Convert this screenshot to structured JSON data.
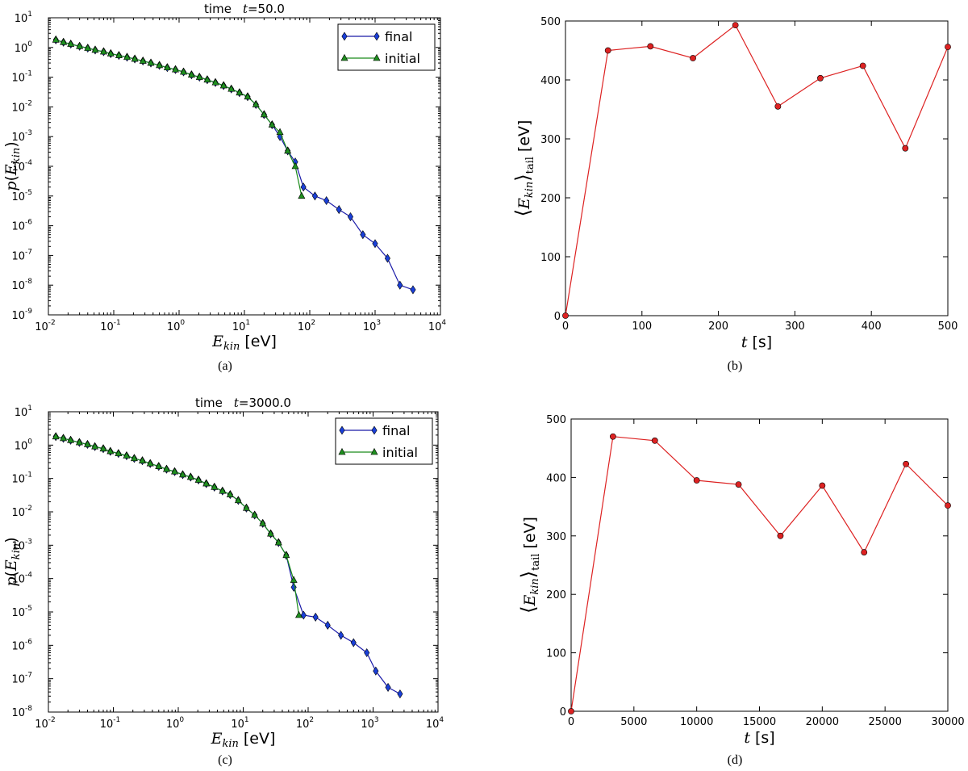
{
  "chart_data": [
    {
      "id": "a",
      "type": "line",
      "xscale": "log",
      "yscale": "log",
      "title_prefix": "time",
      "title_var": "t",
      "title_value": "=50.0",
      "xlabel_var": "E",
      "xlabel_sub": "kin",
      "xlabel_unit": "[eV]",
      "ylabel_p": "p",
      "ylabel_var": "E",
      "ylabel_sub": "kin",
      "caption": "(a)",
      "xlim": [
        0.01,
        10000
      ],
      "ylim": [
        1e-09,
        10
      ],
      "xticks": [
        {
          "base": "10",
          "exp": "-2"
        },
        {
          "base": "10",
          "exp": "-1"
        },
        {
          "base": "10",
          "exp": "0"
        },
        {
          "base": "10",
          "exp": "1"
        },
        {
          "base": "10",
          "exp": "2"
        },
        {
          "base": "10",
          "exp": "3"
        },
        {
          "base": "10",
          "exp": "4"
        }
      ],
      "yticks": [
        {
          "base": "10",
          "exp": "-9"
        },
        {
          "base": "10",
          "exp": "-8"
        },
        {
          "base": "10",
          "exp": "-7"
        },
        {
          "base": "10",
          "exp": "-6"
        },
        {
          "base": "10",
          "exp": "-5"
        },
        {
          "base": "10",
          "exp": "-4"
        },
        {
          "base": "10",
          "exp": "-3"
        },
        {
          "base": "10",
          "exp": "-2"
        },
        {
          "base": "10",
          "exp": "-1"
        },
        {
          "base": "10",
          "exp": "0"
        },
        {
          "base": "10",
          "exp": "1"
        }
      ],
      "legend": {
        "position": "top-right",
        "entries": [
          "final",
          "initial"
        ]
      },
      "series": [
        {
          "name": "final",
          "color": "#1a1aa8",
          "marker": "diamond",
          "x": [
            0.013,
            0.017,
            0.022,
            0.03,
            0.04,
            0.052,
            0.07,
            0.09,
            0.12,
            0.16,
            0.21,
            0.28,
            0.37,
            0.5,
            0.66,
            0.88,
            1.17,
            1.55,
            2.05,
            2.7,
            3.6,
            4.8,
            6.3,
            8.4,
            11.2,
            15.0,
            20.0,
            26.5,
            35.0,
            46.0,
            60.0,
            80.0,
            120,
            180,
            280,
            420,
            650,
            1000,
            1550,
            2400,
            3800
          ],
          "y": [
            1.8,
            1.5,
            1.3,
            1.1,
            0.95,
            0.82,
            0.72,
            0.62,
            0.54,
            0.47,
            0.41,
            0.35,
            0.3,
            0.25,
            0.21,
            0.18,
            0.15,
            0.12,
            0.1,
            0.082,
            0.066,
            0.052,
            0.04,
            0.03,
            0.022,
            0.012,
            0.0055,
            0.0025,
            0.001,
            0.00033,
            0.00014,
            2e-05,
            1e-05,
            7e-06,
            3.5e-06,
            2e-06,
            5e-07,
            2.5e-07,
            8e-08,
            1e-08,
            7e-09
          ]
        },
        {
          "name": "initial",
          "color": "#1a8a1a",
          "marker": "triangle",
          "x": [
            0.013,
            0.017,
            0.022,
            0.03,
            0.04,
            0.052,
            0.07,
            0.09,
            0.12,
            0.16,
            0.21,
            0.28,
            0.37,
            0.5,
            0.66,
            0.88,
            1.17,
            1.55,
            2.05,
            2.7,
            3.6,
            4.8,
            6.3,
            8.4,
            11.2,
            15.0,
            20.0,
            26.5,
            35.0,
            46.0,
            60.0,
            75.0
          ],
          "y": [
            1.8,
            1.5,
            1.3,
            1.1,
            0.95,
            0.82,
            0.72,
            0.62,
            0.54,
            0.47,
            0.41,
            0.35,
            0.3,
            0.25,
            0.21,
            0.18,
            0.15,
            0.12,
            0.1,
            0.082,
            0.066,
            0.052,
            0.04,
            0.03,
            0.022,
            0.012,
            0.0055,
            0.0025,
            0.0014,
            0.00033,
            0.0001,
            1e-05
          ]
        }
      ]
    },
    {
      "id": "b",
      "type": "line",
      "xlabel_var": "t",
      "xlabel_unit": "[s]",
      "ylabel_var": "E",
      "ylabel_sub": "kin",
      "ylabel_tail": "tail",
      "ylabel_unit": "[eV]",
      "caption": "(b)",
      "xlim": [
        0,
        500
      ],
      "ylim": [
        0,
        500
      ],
      "xticks": [
        "0",
        "100",
        "200",
        "300",
        "400",
        "500"
      ],
      "yticks": [
        "0",
        "100",
        "200",
        "300",
        "400",
        "500"
      ],
      "series": [
        {
          "name": "tail mean energy",
          "color": "#dd2222",
          "marker": "circle",
          "x": [
            0,
            55.6,
            111.1,
            166.7,
            222.2,
            277.8,
            333.3,
            388.9,
            444.4,
            500
          ],
          "y": [
            0,
            450,
            457,
            437,
            493,
            355,
            403,
            424,
            284,
            456
          ]
        }
      ]
    },
    {
      "id": "c",
      "type": "line",
      "xscale": "log",
      "yscale": "log",
      "title_prefix": "time",
      "title_var": "t",
      "title_value": "=3000.0",
      "xlabel_var": "E",
      "xlabel_sub": "kin",
      "xlabel_unit": "[eV]",
      "ylabel_p": "p",
      "ylabel_var": "E",
      "ylabel_sub": "kin",
      "caption": "(c)",
      "xlim": [
        0.01,
        10000
      ],
      "ylim": [
        1e-08,
        10
      ],
      "xticks": [
        {
          "base": "10",
          "exp": "-2"
        },
        {
          "base": "10",
          "exp": "-1"
        },
        {
          "base": "10",
          "exp": "0"
        },
        {
          "base": "10",
          "exp": "1"
        },
        {
          "base": "10",
          "exp": "2"
        },
        {
          "base": "10",
          "exp": "3"
        },
        {
          "base": "10",
          "exp": "4"
        }
      ],
      "yticks": [
        {
          "base": "10",
          "exp": "-8"
        },
        {
          "base": "10",
          "exp": "-7"
        },
        {
          "base": "10",
          "exp": "-6"
        },
        {
          "base": "10",
          "exp": "-5"
        },
        {
          "base": "10",
          "exp": "-4"
        },
        {
          "base": "10",
          "exp": "-3"
        },
        {
          "base": "10",
          "exp": "-2"
        },
        {
          "base": "10",
          "exp": "-1"
        },
        {
          "base": "10",
          "exp": "0"
        },
        {
          "base": "10",
          "exp": "1"
        }
      ],
      "legend": {
        "position": "top-right",
        "entries": [
          "final",
          "initial"
        ]
      },
      "series": [
        {
          "name": "final",
          "color": "#1a1aa8",
          "marker": "diamond",
          "x": [
            0.013,
            0.017,
            0.022,
            0.03,
            0.04,
            0.052,
            0.07,
            0.09,
            0.12,
            0.16,
            0.21,
            0.28,
            0.37,
            0.5,
            0.66,
            0.88,
            1.17,
            1.55,
            2.05,
            2.7,
            3.6,
            4.8,
            6.3,
            8.4,
            11.2,
            15.0,
            20.0,
            26.5,
            35.0,
            46.0,
            60.0,
            85.0,
            130,
            200,
            320,
            500,
            800,
            1100,
            1700,
            2600
          ],
          "y": [
            1.8,
            1.6,
            1.4,
            1.2,
            1.05,
            0.9,
            0.78,
            0.65,
            0.56,
            0.48,
            0.4,
            0.34,
            0.28,
            0.23,
            0.19,
            0.16,
            0.13,
            0.11,
            0.09,
            0.07,
            0.055,
            0.042,
            0.033,
            0.022,
            0.013,
            0.008,
            0.0045,
            0.0022,
            0.0012,
            0.0005,
            5.5e-05,
            8e-06,
            7e-06,
            4e-06,
            2e-06,
            1.2e-06,
            6e-07,
            1.7e-07,
            5.5e-08,
            3.5e-08
          ]
        },
        {
          "name": "initial",
          "color": "#1a8a1a",
          "marker": "triangle",
          "x": [
            0.013,
            0.017,
            0.022,
            0.03,
            0.04,
            0.052,
            0.07,
            0.09,
            0.12,
            0.16,
            0.21,
            0.28,
            0.37,
            0.5,
            0.66,
            0.88,
            1.17,
            1.55,
            2.05,
            2.7,
            3.6,
            4.8,
            6.3,
            8.4,
            11.2,
            15.0,
            20.0,
            26.5,
            35.0,
            46.0,
            60.0,
            72.0
          ],
          "y": [
            1.8,
            1.6,
            1.4,
            1.2,
            1.05,
            0.9,
            0.78,
            0.65,
            0.56,
            0.48,
            0.4,
            0.34,
            0.28,
            0.23,
            0.19,
            0.16,
            0.13,
            0.11,
            0.09,
            0.07,
            0.055,
            0.042,
            0.033,
            0.022,
            0.013,
            0.008,
            0.0045,
            0.0022,
            0.0012,
            0.0005,
            9e-05,
            8e-06
          ]
        }
      ]
    },
    {
      "id": "d",
      "type": "line",
      "xlabel_var": "t",
      "xlabel_unit": "[s]",
      "ylabel_var": "E",
      "ylabel_sub": "kin",
      "ylabel_tail": "tail",
      "ylabel_unit": "[eV]",
      "caption": "(d)",
      "xlim": [
        0,
        30000
      ],
      "ylim": [
        0,
        500
      ],
      "xticks": [
        "0",
        "5000",
        "10000",
        "15000",
        "20000",
        "25000",
        "30000"
      ],
      "yticks": [
        "0",
        "100",
        "200",
        "300",
        "400",
        "500"
      ],
      "series": [
        {
          "name": "tail mean energy",
          "color": "#dd2222",
          "marker": "circle",
          "x": [
            0,
            3333,
            6667,
            10000,
            13333,
            16667,
            20000,
            23333,
            26667,
            30000
          ],
          "y": [
            0,
            470,
            463,
            395,
            388,
            300,
            386,
            272,
            423,
            352
          ]
        }
      ]
    }
  ]
}
